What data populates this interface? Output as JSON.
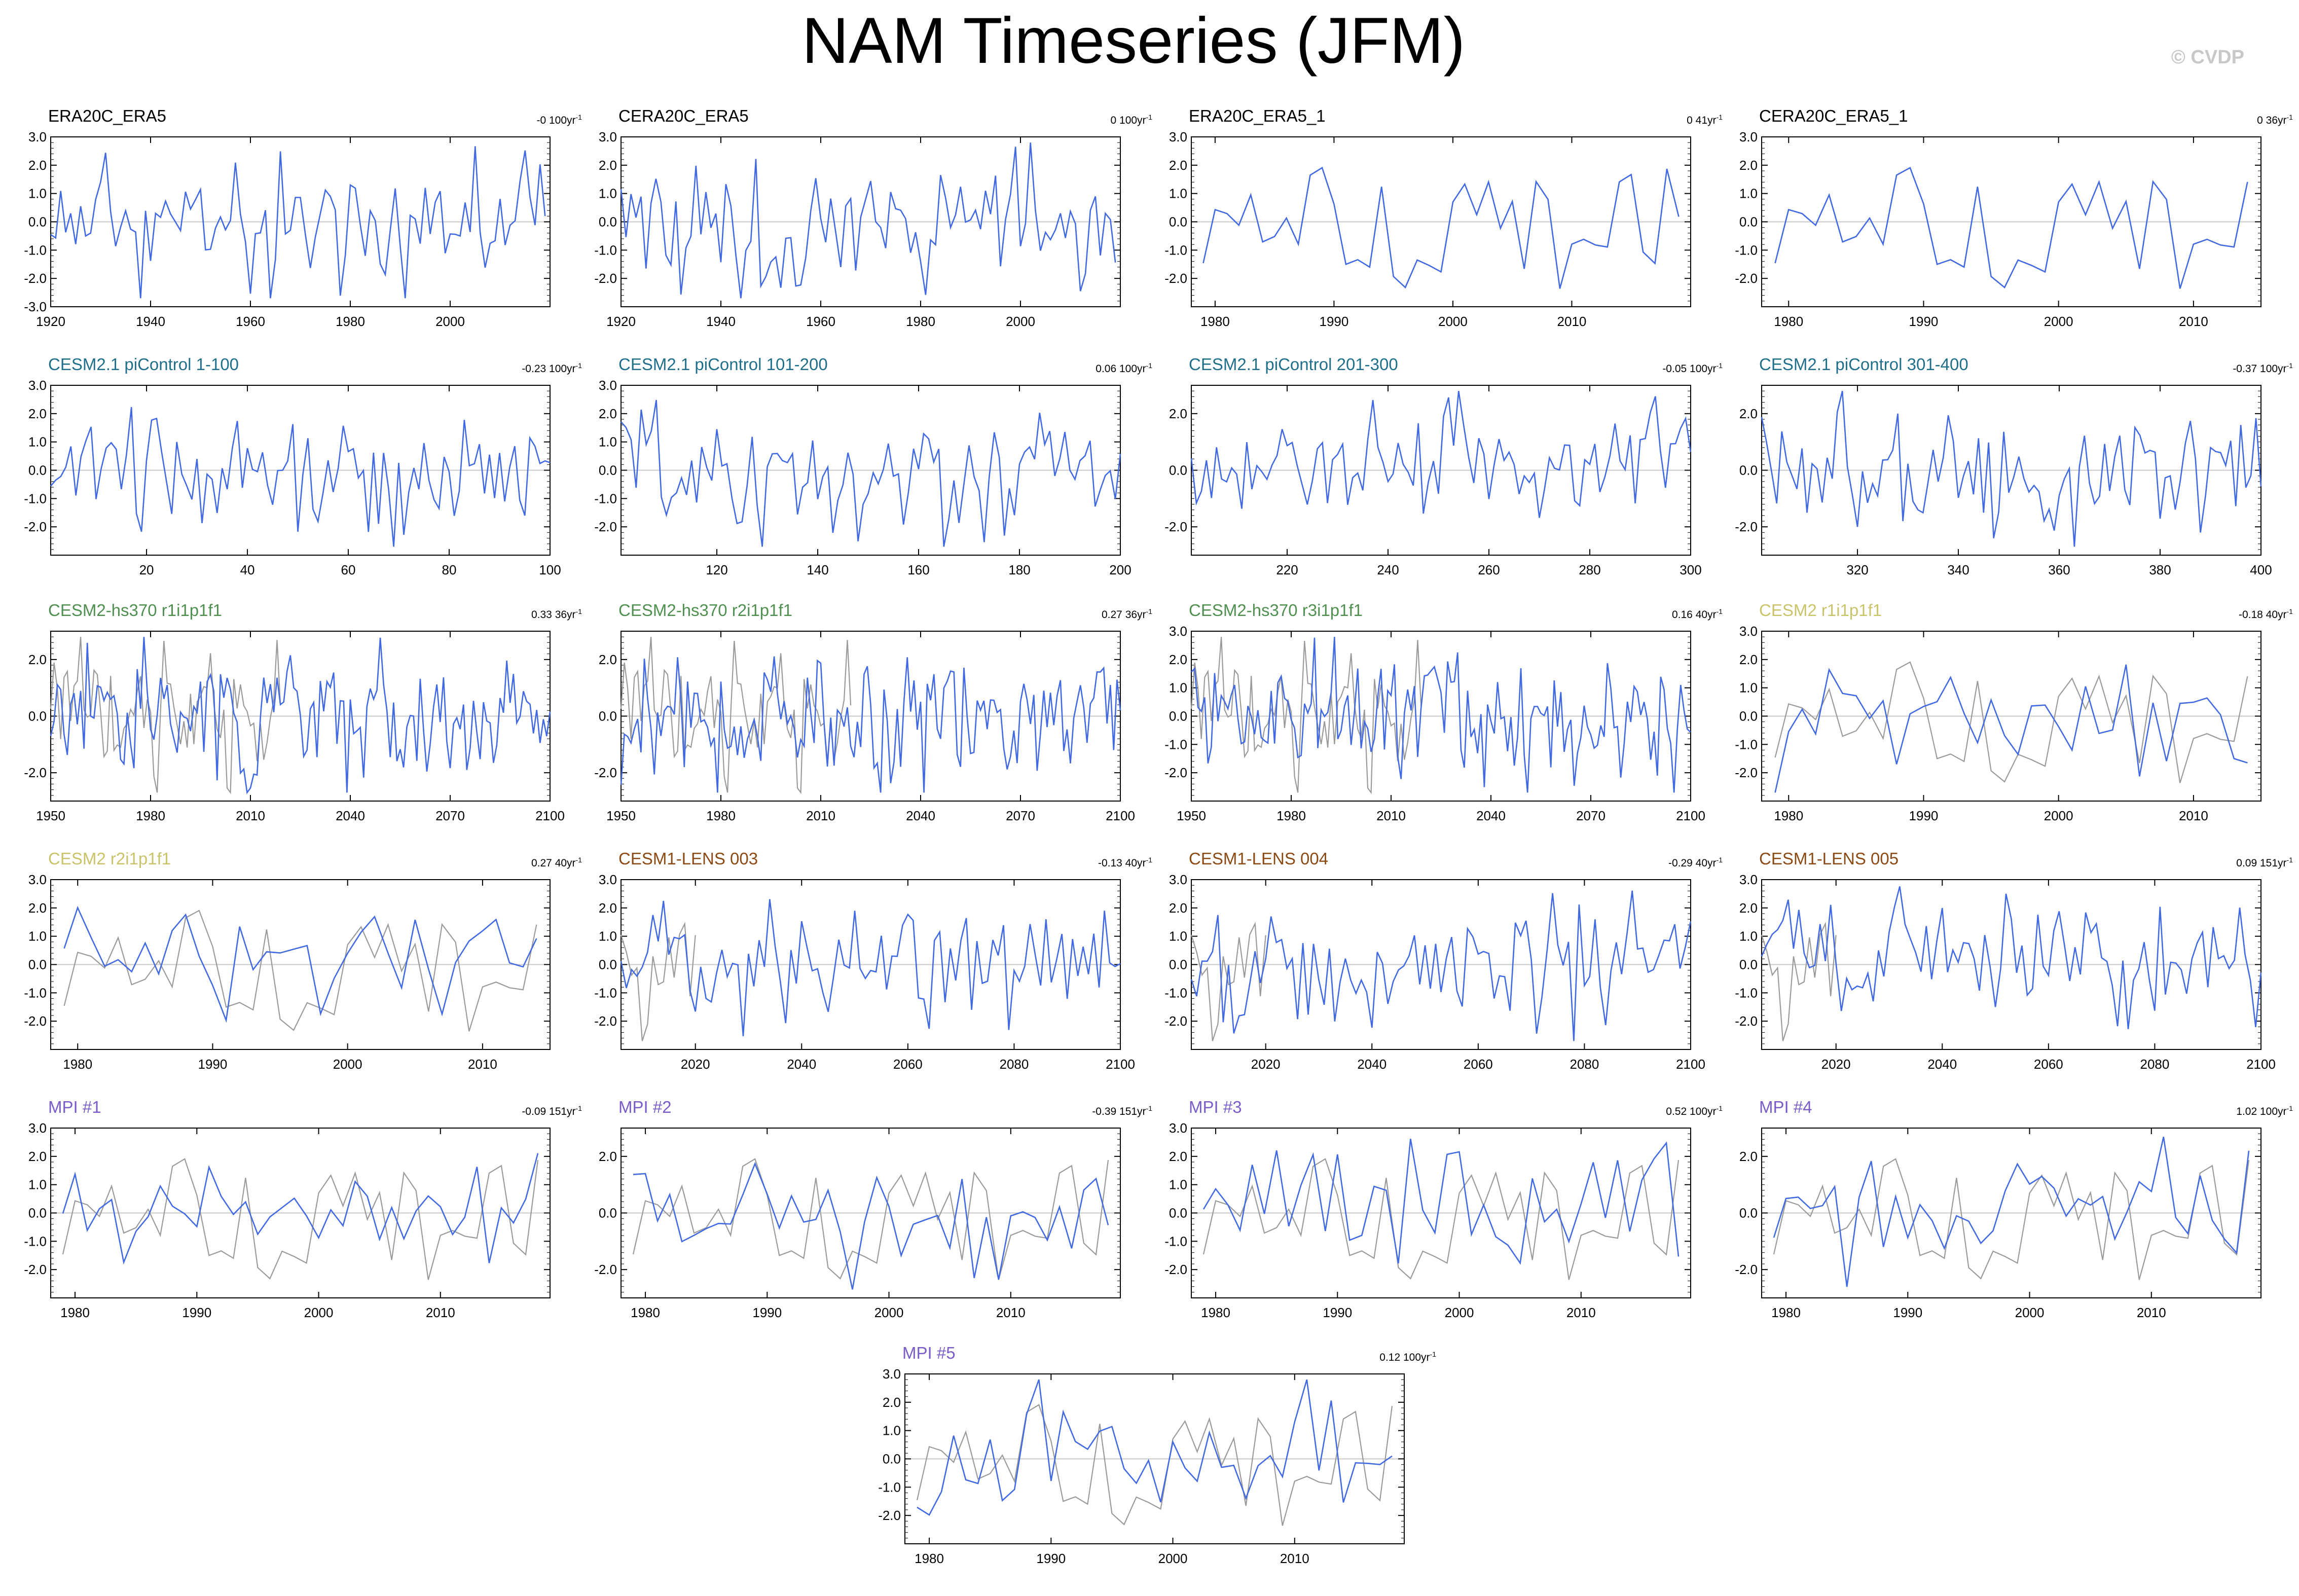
{
  "title": "NAM Timeseries (JFM)",
  "watermark": "© CVDP",
  "colors": {
    "model_line": "#4169e1",
    "obs_line": "#9a9a9a",
    "zero_line": "#c8c8c8",
    "title_obs": "#000000",
    "title_cesm21": "#1f6f8b",
    "title_hs370": "#4f8f4f",
    "title_cesm2": "#c9c36a",
    "title_lens": "#8b4a14",
    "title_mpi": "#7a5cc8"
  },
  "panels": [
    {
      "id": "p1",
      "title": "ERA20C_ERA5",
      "title_color": "#000000",
      "trend": "-0 100yr",
      "trend_exp": "-1",
      "x0": 1920,
      "n": 100,
      "seed": 11,
      "amp": 1.15,
      "xticks": [
        1920,
        1940,
        1960,
        1980,
        2000
      ],
      "xlim": [
        1920,
        2020
      ],
      "yticks": [
        3.0,
        2.0,
        1.0,
        0.0,
        -1.0,
        -2.0,
        -3.0
      ],
      "ylim": [
        -3,
        3
      ],
      "obs": false
    },
    {
      "id": "p2",
      "title": "CERA20C_ERA5",
      "title_color": "#000000",
      "trend": "0 100yr",
      "trend_exp": "-1",
      "x0": 1920,
      "n": 100,
      "seed": 13,
      "amp": 1.15,
      "xticks": [
        1920,
        1940,
        1960,
        1980,
        2000
      ],
      "xlim": [
        1920,
        2020
      ],
      "yticks": [
        3.0,
        2.0,
        1.0,
        0.0,
        -1.0,
        -2.0
      ],
      "ylim": [
        -3,
        3
      ],
      "obs": false
    },
    {
      "id": "p3",
      "title": "ERA20C_ERA5_1",
      "title_color": "#000000",
      "trend": "0 41yr",
      "trend_exp": "-1",
      "x0": 1979,
      "n": 41,
      "seed": 21,
      "amp": 1.0,
      "xticks": [
        1980,
        1990,
        2000,
        2010
      ],
      "xlim": [
        1978,
        2020
      ],
      "yticks": [
        3.0,
        2.0,
        1.0,
        0.0,
        -1.0,
        -2.0
      ],
      "ylim": [
        -3,
        3
      ],
      "obs": true,
      "obs_seed": 21
    },
    {
      "id": "p4",
      "title": "CERA20C_ERA5_1",
      "title_color": "#000000",
      "trend": "0 36yr",
      "trend_exp": "-1",
      "x0": 1979,
      "n": 36,
      "seed": 21,
      "amp": 1.0,
      "xticks": [
        1980,
        1990,
        2000,
        2010
      ],
      "xlim": [
        1978,
        2015
      ],
      "yticks": [
        3.0,
        2.0,
        1.0,
        0.0,
        -1.0,
        -2.0
      ],
      "ylim": [
        -3,
        3
      ],
      "obs": true,
      "obs_seed": 21
    },
    {
      "id": "p5",
      "title": "CESM2.1 piControl 1-100",
      "title_color": "#1f6f8b",
      "trend": "-0.23 100yr",
      "trend_exp": "-1",
      "x0": 1,
      "n": 100,
      "seed": 31,
      "amp": 1.05,
      "xticks": [
        20,
        40,
        60,
        80,
        100
      ],
      "xlim": [
        1,
        100
      ],
      "yticks": [
        3.0,
        2.0,
        1.0,
        0.0,
        -1.0,
        -2.0
      ],
      "ylim": [
        -3,
        3
      ],
      "obs": false
    },
    {
      "id": "p6",
      "title": "CESM2.1 piControl 101-200",
      "title_color": "#1f6f8b",
      "trend": "0.06 100yr",
      "trend_exp": "-1",
      "x0": 101,
      "n": 100,
      "seed": 37,
      "amp": 1.05,
      "xticks": [
        120,
        140,
        160,
        180,
        200
      ],
      "xlim": [
        101,
        200
      ],
      "yticks": [
        3.0,
        2.0,
        1.0,
        0.0,
        -1.0,
        -2.0
      ],
      "ylim": [
        -3,
        3
      ],
      "obs": false
    },
    {
      "id": "p7",
      "title": "CESM2.1 piControl 201-300",
      "title_color": "#1f6f8b",
      "trend": "-0.05 100yr",
      "trend_exp": "-1",
      "x0": 201,
      "n": 100,
      "seed": 41,
      "amp": 1.05,
      "xticks": [
        220,
        240,
        260,
        280,
        300
      ],
      "xlim": [
        201,
        300
      ],
      "yticks": [
        2.0,
        0.0,
        -2.0
      ],
      "ylim": [
        -3,
        3
      ],
      "obs": false
    },
    {
      "id": "p8",
      "title": "CESM2.1 piControl 301-400",
      "title_color": "#1f6f8b",
      "trend": "-0.37 100yr",
      "trend_exp": "-1",
      "x0": 301,
      "n": 100,
      "seed": 43,
      "amp": 1.05,
      "xticks": [
        320,
        340,
        360,
        380,
        400
      ],
      "xlim": [
        301,
        400
      ],
      "yticks": [
        2.0,
        0.0,
        -2.0
      ],
      "ylim": [
        -3,
        3
      ],
      "obs": false
    },
    {
      "id": "p9",
      "title": "CESM2-hs370 r1i1p1f1",
      "title_color": "#4f8f4f",
      "trend": "0.33 36yr",
      "trend_exp": "-1",
      "x0": 1950,
      "n": 151,
      "seed": 51,
      "amp": 1.05,
      "xticks": [
        1950,
        1980,
        2010,
        2040,
        2070,
        2100
      ],
      "xlim": [
        1950,
        2100
      ],
      "yticks": [
        2.0,
        0.0,
        -2.0
      ],
      "ylim": [
        -3,
        3
      ],
      "obs": true,
      "obs_seed": 61,
      "obs_x0": 1950,
      "obs_n": 70
    },
    {
      "id": "p10",
      "title": "CESM2-hs370 r2i1p1f1",
      "title_color": "#4f8f4f",
      "trend": "0.27 36yr",
      "trend_exp": "-1",
      "x0": 1950,
      "n": 151,
      "seed": 53,
      "amp": 1.05,
      "xticks": [
        1950,
        1980,
        2010,
        2040,
        2070,
        2100
      ],
      "xlim": [
        1950,
        2100
      ],
      "yticks": [
        2.0,
        0.0,
        -2.0
      ],
      "ylim": [
        -3,
        3
      ],
      "obs": true,
      "obs_seed": 61,
      "obs_x0": 1950,
      "obs_n": 70
    },
    {
      "id": "p11",
      "title": "CESM2-hs370 r3i1p1f1",
      "title_color": "#4f8f4f",
      "trend": "0.16 40yr",
      "trend_exp": "-1",
      "x0": 1950,
      "n": 151,
      "seed": 57,
      "amp": 1.05,
      "xticks": [
        1950,
        1980,
        2010,
        2040,
        2070,
        2100
      ],
      "xlim": [
        1950,
        2100
      ],
      "yticks": [
        3.0,
        2.0,
        1.0,
        0.0,
        -1.0,
        -2.0
      ],
      "ylim": [
        -3,
        3
      ],
      "obs": true,
      "obs_seed": 61,
      "obs_x0": 1950,
      "obs_n": 70
    },
    {
      "id": "p12",
      "title": "CESM2 r1i1p1f1",
      "title_color": "#c9c36a",
      "trend": "-0.18 40yr",
      "trend_exp": "-1",
      "x0": 1979,
      "n": 36,
      "seed": 71,
      "amp": 1.0,
      "xticks": [
        1980,
        1990,
        2000,
        2010
      ],
      "xlim": [
        1978,
        2015
      ],
      "yticks": [
        3.0,
        2.0,
        1.0,
        0.0,
        -1.0,
        -2.0
      ],
      "ylim": [
        -3,
        3
      ],
      "obs": true,
      "obs_seed": 21
    },
    {
      "id": "p13",
      "title": "CESM2 r2i1p1f1",
      "title_color": "#c9c36a",
      "trend": "0.27 40yr",
      "trend_exp": "-1",
      "x0": 1979,
      "n": 36,
      "seed": 73,
      "amp": 1.0,
      "xticks": [
        1980,
        1990,
        2000,
        2010
      ],
      "xlim": [
        1978,
        2015
      ],
      "yticks": [
        3.0,
        2.0,
        1.0,
        0.0,
        -1.0,
        -2.0
      ],
      "ylim": [
        -3,
        3
      ],
      "obs": true,
      "obs_seed": 21
    },
    {
      "id": "p14",
      "title": "CESM1-LENS 003",
      "title_color": "#8b4a14",
      "trend": "-0.13 40yr",
      "trend_exp": "-1",
      "x0": 2006,
      "n": 95,
      "seed": 81,
      "amp": 1.05,
      "xticks": [
        2020,
        2040,
        2060,
        2080,
        2100
      ],
      "xlim": [
        2006,
        2100
      ],
      "yticks": [
        3.0,
        2.0,
        1.0,
        0.0,
        -1.0,
        -2.0
      ],
      "ylim": [
        -3,
        3
      ],
      "obs": true,
      "obs_seed": 91,
      "obs_x0": 2006,
      "obs_n": 15
    },
    {
      "id": "p15",
      "title": "CESM1-LENS 004",
      "title_color": "#8b4a14",
      "trend": "-0.29 40yr",
      "trend_exp": "-1",
      "x0": 2006,
      "n": 95,
      "seed": 83,
      "amp": 1.05,
      "xticks": [
        2020,
        2040,
        2060,
        2080,
        2100
      ],
      "xlim": [
        2006,
        2100
      ],
      "yticks": [
        3.0,
        2.0,
        1.0,
        0.0,
        -1.0,
        -2.0
      ],
      "ylim": [
        -3,
        3
      ],
      "obs": true,
      "obs_seed": 91,
      "obs_x0": 2006,
      "obs_n": 15
    },
    {
      "id": "p16",
      "title": "CESM1-LENS 005",
      "title_color": "#8b4a14",
      "trend": "0.09 151yr",
      "trend_exp": "-1",
      "x0": 2006,
      "n": 95,
      "seed": 87,
      "amp": 1.05,
      "xticks": [
        2020,
        2040,
        2060,
        2080,
        2100
      ],
      "xlim": [
        2006,
        2100
      ],
      "yticks": [
        3.0,
        2.0,
        1.0,
        0.0,
        -1.0,
        -2.0
      ],
      "ylim": [
        -3,
        3
      ],
      "obs": true,
      "obs_seed": 91,
      "obs_x0": 2006,
      "obs_n": 15
    },
    {
      "id": "p17",
      "title": "MPI #1",
      "title_color": "#7a5cc8",
      "trend": "-0.09 151yr",
      "trend_exp": "-1",
      "x0": 1979,
      "n": 40,
      "seed": 101,
      "amp": 1.0,
      "xticks": [
        1980,
        1990,
        2000,
        2010
      ],
      "xlim": [
        1978,
        2019
      ],
      "yticks": [
        3.0,
        2.0,
        1.0,
        0.0,
        -1.0,
        -2.0
      ],
      "ylim": [
        -3,
        3
      ],
      "obs": true,
      "obs_seed": 21
    },
    {
      "id": "p18",
      "title": "MPI #2",
      "title_color": "#7a5cc8",
      "trend": "-0.39 151yr",
      "trend_exp": "-1",
      "x0": 1979,
      "n": 40,
      "seed": 103,
      "amp": 1.0,
      "xticks": [
        1980,
        1990,
        2000,
        2010
      ],
      "xlim": [
        1978,
        2019
      ],
      "yticks": [
        2.0,
        0.0,
        -2.0
      ],
      "ylim": [
        -3,
        3
      ],
      "obs": true,
      "obs_seed": 21
    },
    {
      "id": "p19",
      "title": "MPI #3",
      "title_color": "#7a5cc8",
      "trend": "0.52 100yr",
      "trend_exp": "-1",
      "x0": 1979,
      "n": 40,
      "seed": 107,
      "amp": 1.0,
      "xticks": [
        1980,
        1990,
        2000,
        2010
      ],
      "xlim": [
        1978,
        2019
      ],
      "yticks": [
        3.0,
        2.0,
        1.0,
        0.0,
        -1.0,
        -2.0
      ],
      "ylim": [
        -3,
        3
      ],
      "obs": true,
      "obs_seed": 21
    },
    {
      "id": "p20",
      "title": "MPI #4",
      "title_color": "#7a5cc8",
      "trend": "1.02 100yr",
      "trend_exp": "-1",
      "x0": 1979,
      "n": 40,
      "seed": 109,
      "amp": 1.0,
      "xticks": [
        1980,
        1990,
        2000,
        2010
      ],
      "xlim": [
        1978,
        2019
      ],
      "yticks": [
        2.0,
        0.0,
        -2.0
      ],
      "ylim": [
        -3,
        3
      ],
      "obs": true,
      "obs_seed": 21
    },
    {
      "id": "p21",
      "title": "MPI #5",
      "title_color": "#7a5cc8",
      "trend": "0.12 100yr",
      "trend_exp": "-1",
      "x0": 1979,
      "n": 40,
      "seed": 113,
      "amp": 1.0,
      "xticks": [
        1980,
        1990,
        2000,
        2010
      ],
      "xlim": [
        1978,
        2019
      ],
      "yticks": [
        3.0,
        2.0,
        1.0,
        0.0,
        -1.0,
        -2.0
      ],
      "ylim": [
        -3,
        3
      ],
      "obs": true,
      "obs_seed": 21
    }
  ],
  "chart_data": {
    "type": "line",
    "title": "NAM Timeseries (JFM)",
    "xlabel": "",
    "ylabel": "",
    "ylim": [
      -3,
      3
    ],
    "grid": false,
    "legend": "none",
    "panel_titles": [
      "ERA20C_ERA5",
      "CERA20C_ERA5",
      "ERA20C_ERA5_1",
      "CERA20C_ERA5_1",
      "CESM2.1 piControl 1-100",
      "CESM2.1 piControl 101-200",
      "CESM2.1 piControl 201-300",
      "CESM2.1 piControl 301-400",
      "CESM2-hs370 r1i1p1f1",
      "CESM2-hs370 r2i1p1f1",
      "CESM2-hs370 r3i1p1f1",
      "CESM2 r1i1p1f1",
      "CESM2 r2i1p1f1",
      "CESM1-LENS 003",
      "CESM1-LENS 004",
      "CESM1-LENS 005",
      "MPI #1",
      "MPI #2",
      "MPI #3",
      "MPI #4",
      "MPI #5"
    ],
    "series_colors": {
      "model": "#4169e1",
      "observed": "#9a9a9a"
    }
  }
}
